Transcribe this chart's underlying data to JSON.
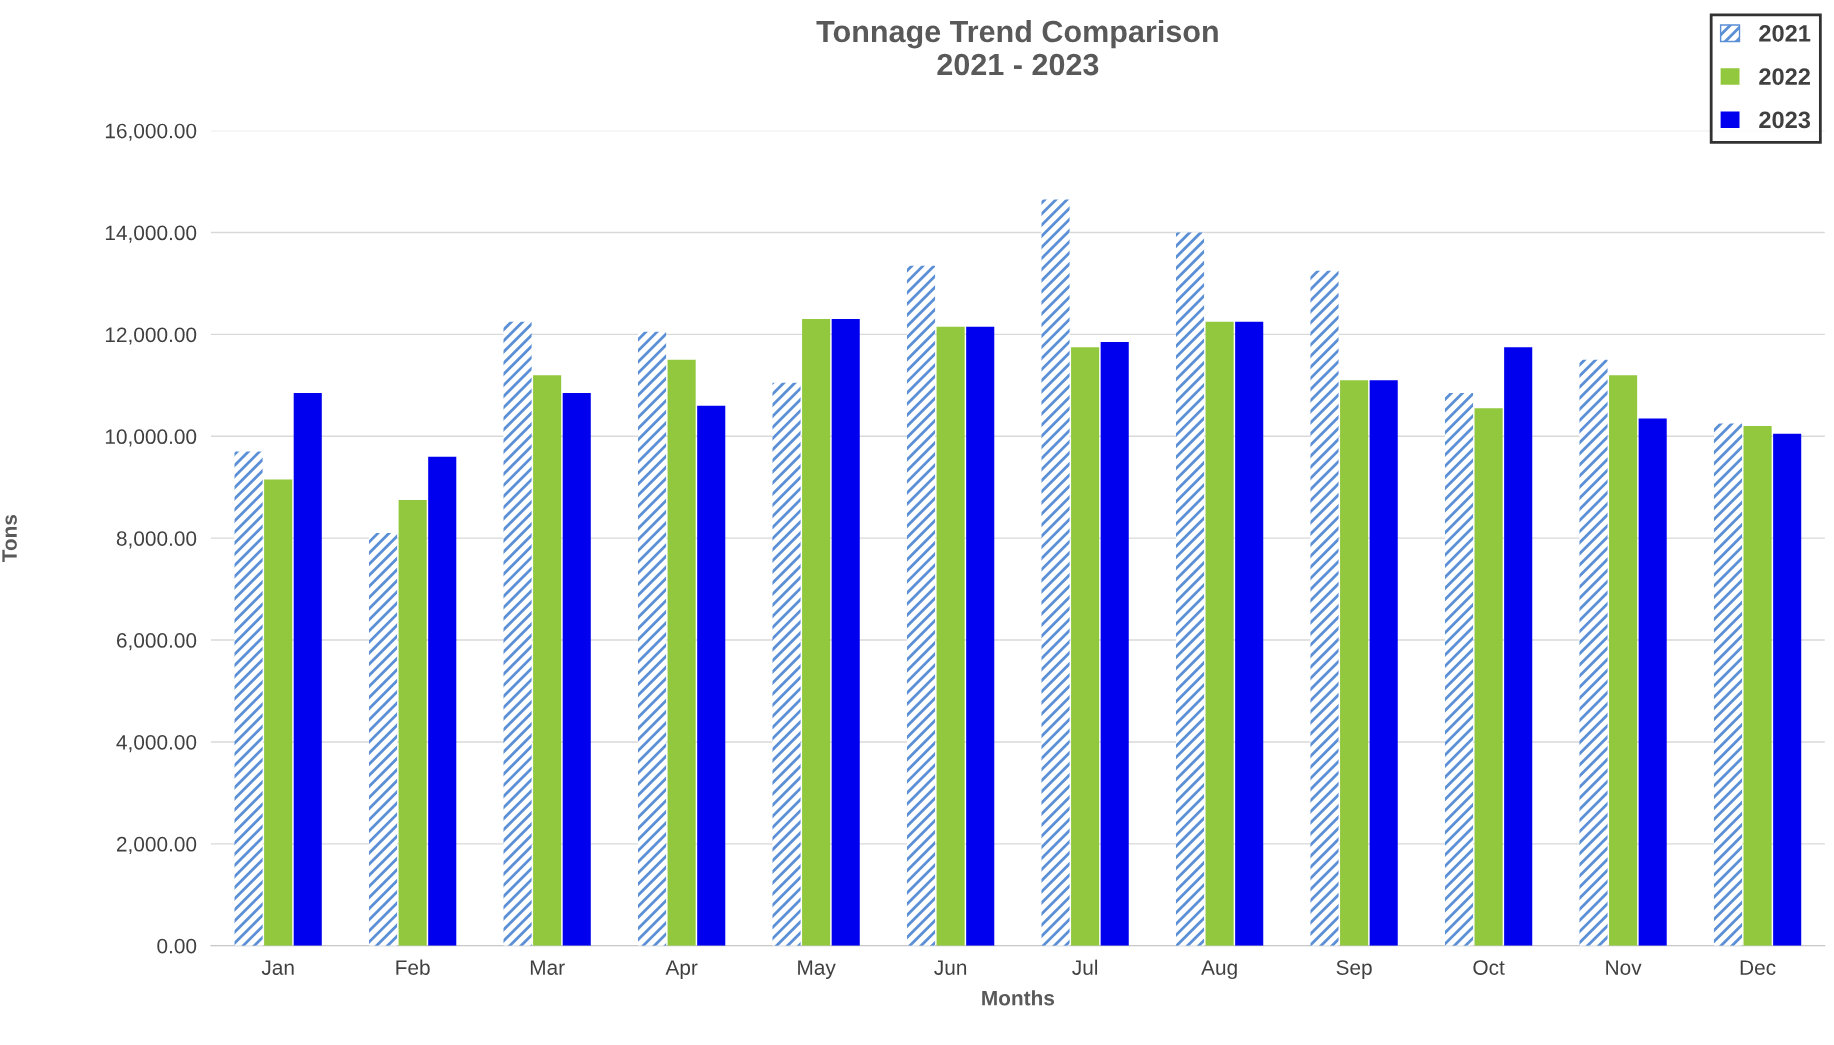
{
  "chart_data": {
    "type": "bar",
    "title": "Tonnage Trend Comparison\n2021 - 2023",
    "xlabel": "Months",
    "ylabel": "Tons",
    "categories": [
      "Jan",
      "Feb",
      "Mar",
      "Apr",
      "May",
      "Jun",
      "Jul",
      "Aug",
      "Sep",
      "Oct",
      "Nov",
      "Dec"
    ],
    "series": [
      {
        "name": "2021",
        "color": "#5b8fd6",
        "values": [
          9700,
          8100,
          12250,
          12050,
          11050,
          13350,
          14650,
          14000,
          13250,
          10850,
          11500,
          10250
        ]
      },
      {
        "name": "2022",
        "color": "#92c83e",
        "values": [
          9150,
          8750,
          11200,
          11500,
          12300,
          12150,
          11750,
          12250,
          11100,
          10550,
          11200,
          10200
        ]
      },
      {
        "name": "2023",
        "color": "#0000ee",
        "values": [
          10850,
          9600,
          10850,
          10600,
          12300,
          12150,
          11850,
          12250,
          11100,
          11750,
          10350,
          10050
        ]
      }
    ],
    "ylim": [
      0,
      16000
    ],
    "yticks": [
      {
        "value": 0,
        "label": "0.00"
      },
      {
        "value": 2000,
        "label": "2,000.00"
      },
      {
        "value": 4000,
        "label": "4,000.00"
      },
      {
        "value": 6000,
        "label": "6,000.00"
      },
      {
        "value": 8000,
        "label": "8,000.00"
      },
      {
        "value": 10000,
        "label": "10,000.00"
      },
      {
        "value": 12000,
        "label": "12,000.00"
      },
      {
        "value": 14000,
        "label": "14,000.00"
      },
      {
        "value": 16000,
        "label": "16,000.00"
      }
    ],
    "grid": "y",
    "legend": "top right"
  }
}
